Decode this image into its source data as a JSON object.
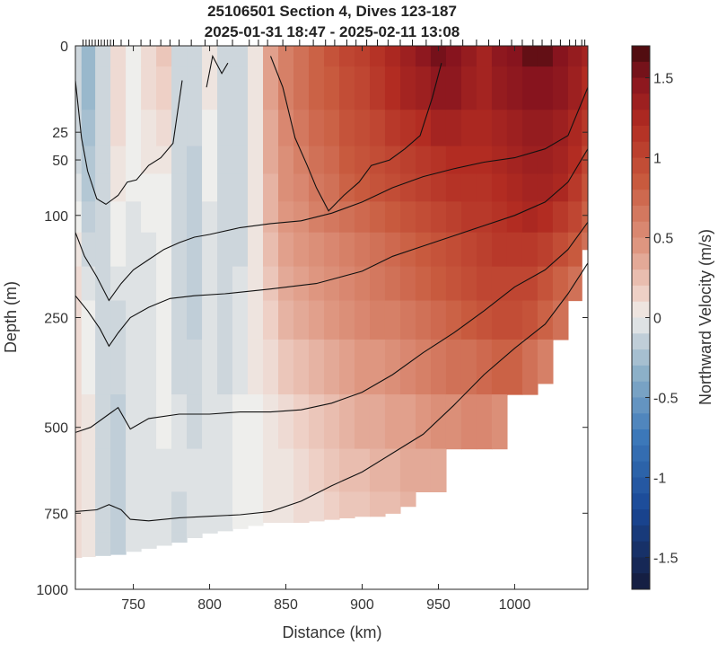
{
  "chart_data": {
    "type": "heatmap",
    "title": "25106501 Section 4, Dives 123-187",
    "subtitle": "2025-01-31 18:47 - 2025-02-11 13:08",
    "xlabel": "Distance (km)",
    "ylabel": "Depth (m)",
    "colorbar_label": "Northward Velocity (m/s)",
    "xlim": [
      712,
      1048
    ],
    "ylim": [
      1000,
      0
    ],
    "x_ticks": [
      750,
      800,
      850,
      900,
      950,
      1000
    ],
    "y_ticks": [
      0,
      25,
      50,
      100,
      250,
      500,
      750,
      1000
    ],
    "y_scale": "stretched (nonlinear depth axis)",
    "clim": [
      -1.7,
      1.7
    ],
    "colorbar_ticks": [
      1.5,
      1,
      0.5,
      0,
      -0.5,
      -1,
      -1.5
    ],
    "colormap": "diverging blue-white-red (balance)",
    "colors": {
      "neg_max": "#141a3a",
      "neg": "#2e6fb5",
      "zero": "#eeeeec",
      "pos": "#c84a30",
      "pos_max": "#400a0d"
    },
    "velocity_field": {
      "x_km": [
        712,
        720,
        730,
        740,
        750,
        760,
        770,
        780,
        790,
        800,
        810,
        820,
        830,
        840,
        850,
        860,
        870,
        880,
        890,
        900,
        910,
        920,
        930,
        940,
        950,
        960,
        970,
        980,
        990,
        1000,
        1010,
        1020,
        1030,
        1040,
        1048
      ],
      "depth_m": [
        0,
        12,
        25,
        50,
        75,
        100,
        150,
        200,
        250,
        350,
        500,
        625,
        750,
        875,
        1000
      ],
      "values_mps": [
        [
          -0.1,
          -0.3,
          -0.1,
          0.1,
          0.0,
          0.1,
          0.2,
          -0.1,
          -0.1,
          0.05,
          -0.1,
          -0.1,
          0.05,
          0.4,
          0.6,
          0.7,
          0.8,
          0.9,
          1.0,
          1.05,
          1.15,
          1.25,
          1.35,
          1.45,
          1.55,
          1.5,
          1.4,
          1.3,
          1.45,
          1.5,
          1.6,
          1.6,
          1.5,
          1.4,
          1.3
        ],
        [
          -0.1,
          -0.3,
          -0.1,
          0.1,
          0.0,
          0.1,
          0.15,
          -0.1,
          -0.1,
          0.05,
          -0.1,
          -0.1,
          0.05,
          0.4,
          0.6,
          0.7,
          0.8,
          0.85,
          0.95,
          1.0,
          1.1,
          1.2,
          1.3,
          1.35,
          1.45,
          1.45,
          1.35,
          1.3,
          1.4,
          1.45,
          1.5,
          1.5,
          1.45,
          1.35,
          1.2
        ],
        [
          -0.1,
          -0.25,
          -0.1,
          0.1,
          0.0,
          0.05,
          0.1,
          -0.1,
          -0.1,
          0.0,
          -0.1,
          -0.1,
          0.05,
          0.35,
          0.55,
          0.65,
          0.75,
          0.8,
          0.9,
          0.95,
          1.0,
          1.1,
          1.15,
          1.2,
          1.3,
          1.3,
          1.25,
          1.25,
          1.3,
          1.35,
          1.4,
          1.4,
          1.35,
          1.25,
          1.1
        ],
        [
          -0.1,
          -0.2,
          -0.1,
          0.05,
          0.0,
          0.05,
          0.05,
          -0.1,
          -0.15,
          0.0,
          -0.1,
          -0.1,
          0.05,
          0.35,
          0.5,
          0.6,
          0.7,
          0.75,
          0.85,
          0.9,
          0.95,
          1.0,
          1.05,
          1.1,
          1.15,
          1.2,
          1.2,
          1.2,
          1.25,
          1.3,
          1.35,
          1.35,
          1.3,
          1.2,
          1.0
        ],
        [
          -0.05,
          -0.2,
          -0.1,
          0.05,
          0.0,
          0.0,
          0.0,
          -0.1,
          -0.15,
          0.0,
          -0.1,
          -0.1,
          0.05,
          0.3,
          0.5,
          0.55,
          0.65,
          0.7,
          0.8,
          0.85,
          0.9,
          0.95,
          1.0,
          1.05,
          1.1,
          1.15,
          1.15,
          1.15,
          1.2,
          1.25,
          1.3,
          1.3,
          1.25,
          1.1,
          0.9
        ],
        [
          0.0,
          -0.15,
          -0.1,
          0.0,
          -0.05,
          0.0,
          0.0,
          -0.1,
          -0.15,
          -0.05,
          -0.1,
          -0.1,
          0.05,
          0.3,
          0.45,
          0.5,
          0.6,
          0.65,
          0.7,
          0.75,
          0.8,
          0.85,
          0.9,
          0.95,
          1.0,
          1.05,
          1.1,
          1.1,
          1.15,
          1.2,
          1.25,
          1.2,
          1.1,
          1.0,
          0.8
        ],
        [
          0.05,
          -0.1,
          -0.1,
          0.0,
          -0.05,
          -0.05,
          0.0,
          -0.1,
          -0.15,
          -0.05,
          -0.1,
          -0.1,
          0.05,
          0.25,
          0.4,
          0.45,
          0.5,
          0.55,
          0.6,
          0.65,
          0.7,
          0.75,
          0.8,
          0.85,
          0.9,
          0.95,
          1.0,
          1.05,
          1.1,
          1.1,
          1.1,
          1.05,
          0.95,
          0.85,
          0.7
        ],
        [
          0.1,
          -0.05,
          -0.1,
          -0.05,
          -0.05,
          -0.05,
          0.0,
          -0.1,
          -0.15,
          -0.05,
          -0.1,
          -0.05,
          0.05,
          0.2,
          0.35,
          0.4,
          0.45,
          0.5,
          0.55,
          0.6,
          0.65,
          0.7,
          0.75,
          0.8,
          0.85,
          0.9,
          0.95,
          1.0,
          1.0,
          1.0,
          1.0,
          0.9,
          0.8,
          0.7,
          null
        ],
        [
          0.1,
          0.0,
          -0.1,
          -0.1,
          -0.05,
          -0.05,
          0.0,
          -0.1,
          -0.15,
          -0.05,
          -0.1,
          -0.05,
          0.05,
          0.15,
          0.3,
          0.35,
          0.4,
          0.45,
          0.5,
          0.55,
          0.6,
          0.6,
          0.65,
          0.7,
          0.75,
          0.8,
          0.85,
          0.9,
          0.95,
          0.95,
          0.9,
          0.8,
          0.7,
          null,
          null
        ],
        [
          0.1,
          0.0,
          -0.1,
          -0.1,
          -0.05,
          -0.05,
          0.0,
          -0.1,
          -0.1,
          -0.05,
          -0.1,
          -0.05,
          0.05,
          0.1,
          0.2,
          0.25,
          0.3,
          0.35,
          0.4,
          0.45,
          0.45,
          0.5,
          0.55,
          0.6,
          0.65,
          0.7,
          0.7,
          0.75,
          0.8,
          0.8,
          0.7,
          0.6,
          null,
          null,
          null
        ],
        [
          0.1,
          0.05,
          -0.1,
          -0.15,
          -0.05,
          -0.05,
          0.0,
          -0.05,
          -0.1,
          -0.05,
          -0.05,
          0.0,
          0.0,
          0.05,
          0.1,
          0.15,
          0.2,
          0.25,
          0.3,
          0.35,
          0.35,
          0.4,
          0.4,
          0.45,
          0.5,
          0.5,
          0.55,
          0.55,
          0.5,
          null,
          null,
          null,
          null,
          null,
          null
        ],
        [
          0.1,
          0.05,
          -0.1,
          -0.15,
          -0.05,
          -0.05,
          -0.05,
          -0.05,
          -0.05,
          -0.05,
          -0.05,
          0.0,
          0.0,
          0.05,
          0.05,
          0.1,
          0.15,
          0.2,
          0.25,
          0.25,
          0.3,
          0.3,
          0.35,
          0.35,
          0.35,
          null,
          null,
          null,
          null,
          null,
          null,
          null,
          null,
          null,
          null
        ],
        [
          0.1,
          0.05,
          -0.1,
          -0.15,
          -0.05,
          -0.05,
          -0.05,
          -0.1,
          -0.05,
          -0.05,
          -0.05,
          0.0,
          0.0,
          0.05,
          0.05,
          0.1,
          0.1,
          0.15,
          0.2,
          0.2,
          0.25,
          0.25,
          0.3,
          null,
          null,
          null,
          null,
          null,
          null,
          null,
          null,
          null,
          null,
          null,
          null
        ],
        [
          0.1,
          0.05,
          -0.1,
          -0.15,
          -0.05,
          -0.05,
          -0.05,
          -0.1,
          -0.05,
          -0.05,
          0.0,
          0.0,
          0.0,
          0.0,
          0.05,
          null,
          null,
          null,
          null,
          null,
          null,
          null,
          null,
          null,
          null,
          null,
          null,
          null,
          null,
          null,
          null,
          null,
          null,
          null,
          null
        ],
        [
          null,
          null,
          null,
          null,
          null,
          null,
          null,
          null,
          null,
          null,
          null,
          null,
          null,
          null,
          null,
          null,
          null,
          null,
          null,
          null,
          null,
          null,
          null,
          null,
          null,
          null,
          null,
          null,
          null,
          null,
          null,
          null,
          null,
          null,
          null
        ]
      ]
    },
    "bottom_depth_m": [
      [
        712,
        895
      ],
      [
        740,
        885
      ],
      [
        760,
        865
      ],
      [
        780,
        845
      ],
      [
        800,
        815
      ],
      [
        820,
        800
      ],
      [
        840,
        780
      ],
      [
        860,
        780
      ],
      [
        880,
        770
      ],
      [
        900,
        760
      ],
      [
        915,
        760
      ],
      [
        930,
        730
      ],
      [
        950,
        690
      ],
      [
        970,
        640
      ],
      [
        990,
        590
      ],
      [
        1000,
        540
      ],
      [
        1010,
        470
      ],
      [
        1020,
        400
      ],
      [
        1030,
        330
      ],
      [
        1040,
        260
      ],
      [
        1045,
        200
      ],
      [
        1048,
        150
      ]
    ],
    "contours_m": [
      [
        [
          712,
          10
        ],
        [
          716,
          30
        ],
        [
          720,
          60
        ],
        [
          726,
          85
        ],
        [
          732,
          90
        ],
        [
          740,
          82
        ],
        [
          746,
          70
        ],
        [
          752,
          68
        ],
        [
          760,
          55
        ],
        [
          768,
          48
        ],
        [
          776,
          35
        ],
        [
          782,
          10
        ]
      ],
      [
        [
          798,
          12
        ],
        [
          802,
          3
        ],
        [
          808,
          8
        ],
        [
          812,
          5
        ]
      ],
      [
        [
          840,
          3
        ],
        [
          848,
          12
        ],
        [
          856,
          30
        ],
        [
          864,
          55
        ],
        [
          870,
          75
        ],
        [
          878,
          96
        ],
        [
          888,
          82
        ],
        [
          898,
          70
        ],
        [
          906,
          55
        ],
        [
          918,
          50
        ],
        [
          928,
          40
        ],
        [
          938,
          28
        ],
        [
          946,
          15
        ],
        [
          952,
          5
        ]
      ],
      [
        [
          712,
          125
        ],
        [
          718,
          160
        ],
        [
          726,
          190
        ],
        [
          734,
          225
        ],
        [
          742,
          200
        ],
        [
          750,
          180
        ],
        [
          760,
          165
        ],
        [
          770,
          150
        ],
        [
          780,
          140
        ],
        [
          790,
          132
        ],
        [
          800,
          128
        ],
        [
          820,
          118
        ],
        [
          840,
          112
        ],
        [
          860,
          108
        ],
        [
          880,
          98
        ],
        [
          900,
          88
        ],
        [
          920,
          75
        ],
        [
          940,
          65
        ],
        [
          960,
          58
        ],
        [
          980,
          52
        ],
        [
          1000,
          48
        ],
        [
          1020,
          40
        ],
        [
          1035,
          28
        ],
        [
          1048,
          12
        ]
      ],
      [
        [
          712,
          218
        ],
        [
          720,
          240
        ],
        [
          728,
          275
        ],
        [
          734,
          315
        ],
        [
          740,
          285
        ],
        [
          748,
          250
        ],
        [
          760,
          235
        ],
        [
          774,
          222
        ],
        [
          790,
          218
        ],
        [
          810,
          215
        ],
        [
          840,
          208
        ],
        [
          870,
          200
        ],
        [
          900,
          182
        ],
        [
          920,
          160
        ],
        [
          940,
          145
        ],
        [
          960,
          130
        ],
        [
          980,
          115
        ],
        [
          1000,
          100
        ],
        [
          1020,
          88
        ],
        [
          1035,
          70
        ],
        [
          1048,
          40
        ]
      ],
      [
        [
          712,
          515
        ],
        [
          722,
          500
        ],
        [
          734,
          470
        ],
        [
          740,
          455
        ],
        [
          748,
          505
        ],
        [
          760,
          480
        ],
        [
          780,
          470
        ],
        [
          800,
          470
        ],
        [
          820,
          465
        ],
        [
          840,
          465
        ],
        [
          860,
          460
        ],
        [
          880,
          445
        ],
        [
          900,
          420
        ],
        [
          920,
          380
        ],
        [
          940,
          330
        ],
        [
          960,
          285
        ],
        [
          980,
          240
        ],
        [
          1000,
          205
        ],
        [
          1020,
          180
        ],
        [
          1035,
          150
        ],
        [
          1048,
          110
        ]
      ],
      [
        [
          712,
          745
        ],
        [
          726,
          740
        ],
        [
          734,
          725
        ],
        [
          742,
          740
        ],
        [
          748,
          770
        ],
        [
          760,
          775
        ],
        [
          780,
          765
        ],
        [
          800,
          760
        ],
        [
          820,
          755
        ],
        [
          840,
          745
        ],
        [
          860,
          715
        ],
        [
          880,
          670
        ],
        [
          900,
          630
        ],
        [
          920,
          575
        ],
        [
          940,
          520
        ],
        [
          960,
          450
        ],
        [
          980,
          380
        ],
        [
          1000,
          320
        ],
        [
          1020,
          265
        ],
        [
          1035,
          215
        ],
        [
          1048,
          170
        ]
      ]
    ],
    "dive_positions_km": [
      717,
      719,
      721,
      723,
      725,
      727,
      729,
      731,
      733,
      735,
      737,
      742,
      747,
      755,
      761,
      768,
      774,
      780,
      788,
      797,
      805,
      815,
      826,
      832,
      838,
      848,
      859,
      868,
      876,
      882,
      890,
      896,
      903,
      910,
      917,
      925,
      933,
      942,
      952,
      958,
      966,
      975,
      983,
      990,
      998,
      1005,
      1012,
      1018,
      1024,
      1030,
      1036,
      1040,
      1044,
      1046
    ]
  }
}
